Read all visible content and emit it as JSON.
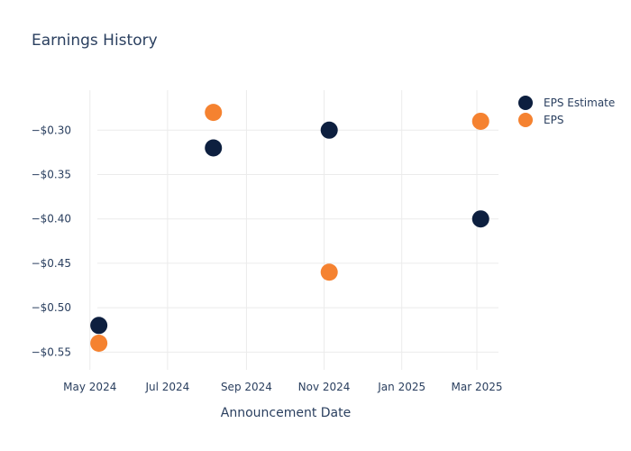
{
  "chart_data": {
    "type": "scatter",
    "title": "Earnings History",
    "xlabel": "Announcement Date",
    "ylabel": "",
    "x_ticks": [
      {
        "date": "2024-05-01",
        "label": "May 2024"
      },
      {
        "date": "2024-07-01",
        "label": "Jul 2024"
      },
      {
        "date": "2024-09-01",
        "label": "Sep 2024"
      },
      {
        "date": "2024-11-01",
        "label": "Nov 2024"
      },
      {
        "date": "2025-01-01",
        "label": "Jan 2025"
      },
      {
        "date": "2025-03-01",
        "label": "Mar 2025"
      }
    ],
    "y_ticks": [
      {
        "value": -0.3,
        "label": "−$0.30"
      },
      {
        "value": -0.35,
        "label": "−$0.35"
      },
      {
        "value": -0.4,
        "label": "−$0.40"
      },
      {
        "value": -0.45,
        "label": "−$0.45"
      },
      {
        "value": -0.5,
        "label": "−$0.50"
      },
      {
        "value": -0.55,
        "label": "−$0.55"
      }
    ],
    "xlim": [
      "2024-04-17",
      "2025-03-18"
    ],
    "ylim": [
      -0.57,
      -0.255
    ],
    "grid": true,
    "legend_position": "top-right",
    "series": [
      {
        "name": "EPS Estimate",
        "color": "#0d1f3f",
        "points": [
          {
            "x": "2024-05-08",
            "y": -0.52
          },
          {
            "x": "2024-08-06",
            "y": -0.32
          },
          {
            "x": "2024-11-05",
            "y": -0.3
          },
          {
            "x": "2025-03-04",
            "y": -0.4
          }
        ]
      },
      {
        "name": "EPS",
        "color": "#f58230",
        "points": [
          {
            "x": "2024-05-08",
            "y": -0.54
          },
          {
            "x": "2024-08-06",
            "y": -0.28
          },
          {
            "x": "2024-11-05",
            "y": -0.46
          },
          {
            "x": "2025-03-04",
            "y": -0.29
          }
        ]
      }
    ]
  }
}
